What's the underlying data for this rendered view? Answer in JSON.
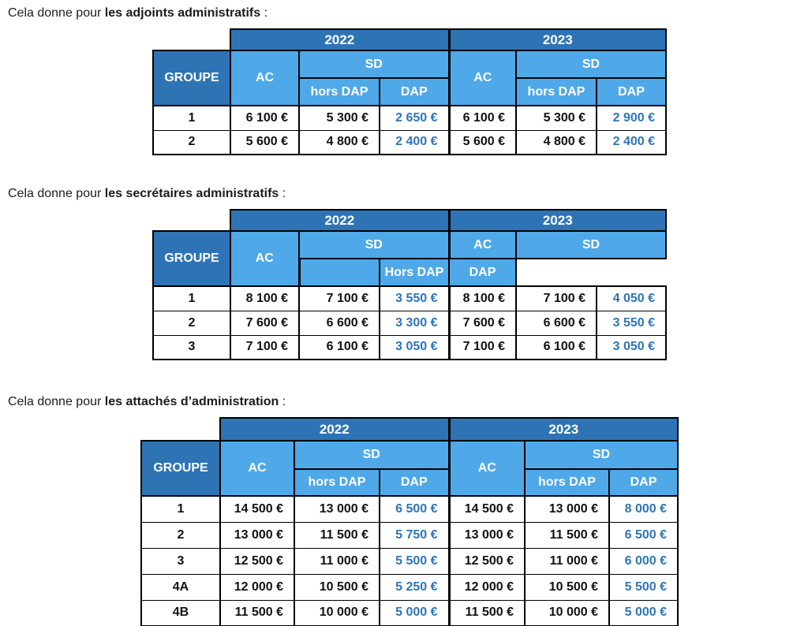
{
  "colors": {
    "header_dark_blue": "#2e74b5",
    "header_light_blue": "#4fa8e8",
    "dap_value_blue": "#2e75b6",
    "border_black": "#000000"
  },
  "sections": [
    {
      "intro_prefix": "Cela donne pour ",
      "intro_bold": "les adjoints administratifs",
      "intro_suffix": " :",
      "years": [
        "2022",
        "2023"
      ],
      "headers": {
        "groupe": "GROUPE",
        "ac1": "AC",
        "sd1": "SD",
        "hors1": "hors DAP",
        "dap1": "DAP",
        "ac2": "AC",
        "sd2": "SD",
        "hors2": "hors DAP",
        "dap2": "DAP"
      },
      "rows": [
        {
          "groupe": "1",
          "values": [
            "6 100 €",
            "5 300 €",
            "2 650 €",
            "6 100 €",
            "5 300 €",
            "2 900 €"
          ]
        },
        {
          "groupe": "2",
          "values": [
            "5 600 €",
            "4 800 €",
            "2 400 €",
            "5 600 €",
            "4 800 €",
            "2 400 €"
          ]
        }
      ]
    },
    {
      "intro_prefix": "Cela donne pour ",
      "intro_bold": "les secrétaires administratifs",
      "intro_suffix": " :",
      "years": [
        "2022",
        "2023"
      ],
      "headers": {
        "groupe": "GROUPE",
        "ac1": "AC",
        "sd1": "SD",
        "hors1": "hors DAP",
        "dap1": "DAP",
        "ac2": "AC",
        "sd2": "SD",
        "hors2": "Hors DAP",
        "dap2": "DAP",
        "empty": ""
      },
      "rows": [
        {
          "groupe": "1",
          "values": [
            "8 100 €",
            "7 100 €",
            "3 550 €",
            "8 100 €",
            "7 100 €",
            "4 050 €"
          ]
        },
        {
          "groupe": "2",
          "values": [
            "7 600 €",
            "6 600 €",
            "3 300 €",
            "7 600 €",
            "6 600 €",
            "3 550 €"
          ]
        },
        {
          "groupe": "3",
          "values": [
            "7 100 €",
            "6 100 €",
            "3 050 €",
            "7 100 €",
            "6 100 €",
            "3 050 €"
          ]
        }
      ]
    },
    {
      "intro_prefix": "Cela donne pour ",
      "intro_bold": "les attachés d’administration",
      "intro_suffix": " :",
      "years": [
        "2022",
        "2023"
      ],
      "headers": {
        "groupe": "GROUPE",
        "ac1": "AC",
        "sd1": "SD",
        "hors1": "hors DAP",
        "dap1": "DAP",
        "ac2": "AC",
        "sd2": "SD",
        "hors2": "hors DAP",
        "dap2": "DAP"
      },
      "rows": [
        {
          "groupe": "1",
          "values": [
            "14 500 €",
            "13 000 €",
            "6 500 €",
            "14 500 €",
            "13 000 €",
            "8 000 €"
          ]
        },
        {
          "groupe": "2",
          "values": [
            "13 000 €",
            "11 500 €",
            "5 750 €",
            "13 000 €",
            "11 500 €",
            "6 500 €"
          ]
        },
        {
          "groupe": "3",
          "values": [
            "12 500 €",
            "11 000 €",
            "5 500 €",
            "12 500 €",
            "11 000 €",
            "6 000 €"
          ]
        },
        {
          "groupe": "4A",
          "values": [
            "12 000 €",
            "10 500 €",
            "5 250 €",
            "12 000 €",
            "10 500 €",
            "5 500 €"
          ]
        },
        {
          "groupe": "4B",
          "values": [
            "11 500 €",
            "10 000 €",
            "5 000 €",
            "11 500 €",
            "10 000 €",
            "5 000 €"
          ]
        }
      ]
    }
  ]
}
